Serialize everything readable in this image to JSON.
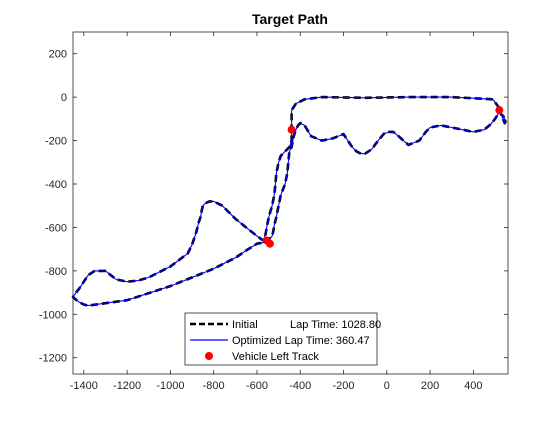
{
  "chart_data": {
    "type": "line",
    "title": "Target Path",
    "xlabel": "",
    "ylabel": "",
    "xlim": [
      -1450,
      560
    ],
    "ylim": [
      -1275,
      300
    ],
    "xticks": [
      -1400,
      -1200,
      -1000,
      -800,
      -600,
      -400,
      -200,
      0,
      200,
      400
    ],
    "xtick_labels": [
      "-1400",
      "-1200",
      "-1000",
      "-800",
      "-600",
      "-400",
      "-200",
      "0",
      "200",
      "400"
    ],
    "yticks": [
      200,
      0,
      -200,
      -400,
      -600,
      -800,
      -1000,
      -1200
    ],
    "ytick_labels": [
      "200",
      "0",
      "-200",
      "-400",
      "-600",
      "-800",
      "-1000",
      "-1200"
    ],
    "grid": false,
    "legend_position": "bottom-center",
    "path": {
      "x": [
        520,
        490,
        300,
        100,
        -100,
        -300,
        -380,
        -420,
        -440,
        -440,
        -450,
        -470,
        -490,
        -500,
        -510,
        -515,
        -520,
        -530,
        -545,
        -555,
        -560,
        -570,
        -600,
        -650,
        -700,
        -760,
        -800,
        -820,
        -840,
        -850,
        -855,
        -860,
        -870,
        -880,
        -890,
        -900,
        -920,
        -1000,
        -1100,
        -1150,
        -1200,
        -1250,
        -1300,
        -1350,
        -1380,
        -1400,
        -1420,
        -1440,
        -1450,
        -1440,
        -1420,
        -1400,
        -1380,
        -1200,
        -1000,
        -800,
        -700,
        -640,
        -600,
        -570,
        -550,
        -530,
        -525,
        -520,
        -510,
        -500,
        -490,
        -470,
        -460,
        -455,
        -450,
        -440,
        -430,
        -420,
        -410,
        -400,
        -380,
        -350,
        -300,
        -250,
        -200,
        -160,
        -140,
        -120,
        -100,
        -70,
        -40,
        -10,
        0,
        10,
        30,
        60,
        100,
        150,
        180,
        200,
        250,
        300,
        350,
        400,
        450,
        480,
        500,
        520,
        540,
        550,
        545,
        520
      ],
      "y": [
        -50,
        -10,
        0,
        0,
        -3,
        0,
        -10,
        -30,
        -60,
        -200,
        -230,
        -250,
        -270,
        -300,
        -350,
        -400,
        -450,
        -500,
        -550,
        -600,
        -630,
        -660,
        -640,
        -600,
        -560,
        -500,
        -480,
        -480,
        -490,
        -500,
        -520,
        -550,
        -580,
        -620,
        -650,
        -680,
        -720,
        -780,
        -830,
        -845,
        -850,
        -840,
        -800,
        -800,
        -820,
        -850,
        -880,
        -905,
        -920,
        -930,
        -945,
        -955,
        -960,
        -935,
        -870,
        -790,
        -740,
        -700,
        -675,
        -670,
        -660,
        -640,
        -620,
        -590,
        -550,
        -500,
        -450,
        -400,
        -350,
        -300,
        -250,
        -230,
        -180,
        -150,
        -130,
        -120,
        -130,
        -180,
        -200,
        -190,
        -170,
        -230,
        -250,
        -260,
        -260,
        -240,
        -200,
        -165,
        -165,
        -160,
        -160,
        -185,
        -220,
        -200,
        -160,
        -140,
        -130,
        -140,
        -150,
        -160,
        -150,
        -125,
        -100,
        -70,
        -90,
        -110,
        -120,
        -60
      ]
    },
    "series": [
      {
        "name": "Initial",
        "style": "dashed",
        "color": "#000000"
      },
      {
        "name": "Optimized Lap Time: 360.47",
        "style": "solid",
        "color": "#0000ff"
      },
      {
        "name": "Vehicle Left Track",
        "style": "marker",
        "color": "#ff0000",
        "x": [
          -440,
          -555,
          -540,
          520
        ],
        "y": [
          -150,
          -660,
          -675,
          -60
        ]
      }
    ],
    "legend": [
      {
        "label": "Initial",
        "extra": "Lap Time: 1028.80"
      },
      {
        "label": "Optimized Lap Time: 360.47",
        "extra": ""
      },
      {
        "label": "Vehicle Left Track",
        "extra": ""
      }
    ]
  }
}
